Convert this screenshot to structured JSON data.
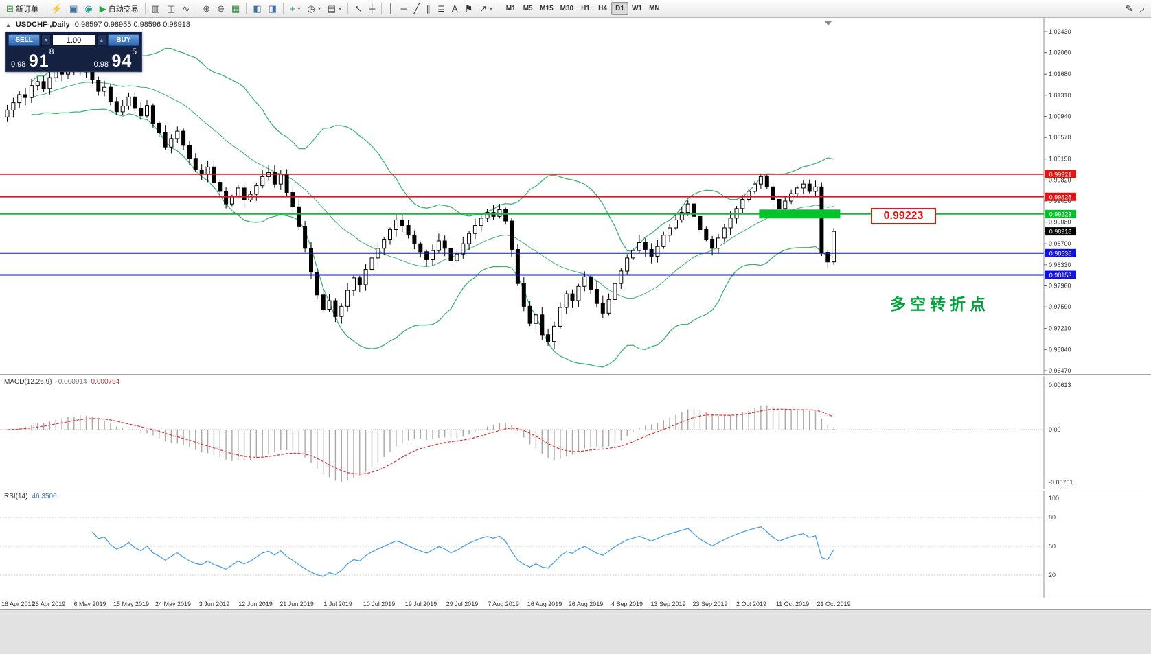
{
  "toolbar": {
    "dropdown_icon": "▾",
    "groups": [
      [
        {
          "name": "new-order",
          "icon": "⊞",
          "color": "#2e8b3a",
          "label": "新订单"
        }
      ],
      [
        {
          "name": "lightning",
          "icon": "⚡",
          "color": "#e59400"
        },
        {
          "name": "chart-profile",
          "icon": "▣",
          "color": "#3a6ea5"
        },
        {
          "name": "market-watch",
          "icon": "◉",
          "color": "#2a9d8f"
        },
        {
          "name": "auto-trading",
          "icon": "▶",
          "color": "#1faa3c",
          "label": "自动交易"
        }
      ],
      [
        {
          "name": "bar-chart-mode",
          "icon": "▥",
          "color": "#555555"
        },
        {
          "name": "candlestick-mode",
          "icon": "◫",
          "color": "#555555"
        },
        {
          "name": "line-chart-mode",
          "icon": "∿",
          "color": "#555555"
        }
      ],
      [
        {
          "name": "zoom-in",
          "icon": "⊕",
          "color": "#555555"
        },
        {
          "name": "zoom-out",
          "icon": "⊖",
          "color": "#555555"
        },
        {
          "name": "grid",
          "icon": "▦",
          "color": "#2e8b3a"
        }
      ],
      [
        {
          "name": "tile-windows",
          "icon": "◧",
          "color": "#3a6ea5"
        },
        {
          "name": "cascade-windows",
          "icon": "◨",
          "color": "#3a6ea5"
        }
      ],
      [
        {
          "name": "indicators",
          "icon": "+",
          "color": "#1faa3c",
          "dropdown": true
        },
        {
          "name": "periods",
          "icon": "◷",
          "color": "#555555",
          "dropdown": true
        },
        {
          "name": "templates",
          "icon": "▤",
          "color": "#555555",
          "dropdown": true
        }
      ],
      [
        {
          "name": "cursor",
          "icon": "↖",
          "color": "#333333"
        },
        {
          "name": "crosshair",
          "icon": "┼",
          "color": "#333333"
        }
      ],
      [
        {
          "name": "vertical-line",
          "icon": "│",
          "color": "#333333"
        },
        {
          "name": "horizontal-line",
          "icon": "─",
          "color": "#333333"
        },
        {
          "name": "trendline",
          "icon": "╱",
          "color": "#333333"
        },
        {
          "name": "equidistant-channel",
          "icon": "∥",
          "color": "#333333"
        },
        {
          "name": "fibonacci",
          "icon": "≣",
          "color": "#333333"
        },
        {
          "name": "text",
          "icon": "A",
          "color": "#333333"
        },
        {
          "name": "text-label",
          "icon": "⚑",
          "color": "#333333"
        },
        {
          "name": "arrows",
          "icon": "↗",
          "color": "#333333",
          "dropdown": true
        }
      ]
    ],
    "timeframes": [
      "M1",
      "M5",
      "M15",
      "M30",
      "H1",
      "H4",
      "D1",
      "W1",
      "MN"
    ],
    "active_timeframe": "D1",
    "right_icons": [
      {
        "name": "edit",
        "icon": "✎"
      },
      {
        "name": "search",
        "icon": "⌕"
      }
    ]
  },
  "chart": {
    "title": "USDCHF-,Daily",
    "ohlc": "0.98597 0.98955 0.98596 0.98918",
    "collapse_icon": "▲",
    "trade_panel": {
      "sell_label": "SELL",
      "buy_label": "BUY",
      "volume": "1.00",
      "spin_down_icon": "▾",
      "spin_up_icon": "▴",
      "sell_price_base": "0.98",
      "sell_price_big": "91",
      "sell_price_sup": "8",
      "buy_price_base": "0.98",
      "buy_price_big": "94",
      "buy_price_sup": "5"
    },
    "price_label_box": "0.99223",
    "annotation": "多空转折点"
  },
  "macd": {
    "name": "MACD(12,26,9)",
    "value1": "-0.000914",
    "value2": "0.000794",
    "axis": [
      "0.00613",
      "0.00",
      "-0.00761"
    ]
  },
  "rsi": {
    "name": "RSI(14)",
    "value": "46.3506",
    "axis": [
      100,
      80,
      50,
      20
    ],
    "levels": [
      80,
      50,
      20
    ]
  },
  "chart_data": {
    "type": "candlestick",
    "symbol": "USDCHF",
    "timeframe": "Daily",
    "ohlc_display": {
      "open": "0.98597",
      "high": "0.98955",
      "low": "0.98596",
      "close": "0.98918"
    },
    "price_axis_ticks": [
      1.0243,
      1.0206,
      1.0168,
      1.0131,
      1.0094,
      1.0057,
      1.0019,
      0.9982,
      0.9945,
      0.9908,
      0.987,
      0.9833,
      0.9796,
      0.9759,
      0.9721,
      0.9684,
      0.9647
    ],
    "date_ticks": [
      "16 Apr 2019",
      "26 Apr 2019",
      "6 May 2019",
      "15 May 2019",
      "24 May 2019",
      "3 Jun 2019",
      "12 Jun 2019",
      "21 Jun 2019",
      "1 Jul 2019",
      "10 Jul 2019",
      "19 Jul 2019",
      "29 Jul 2019",
      "7 Aug 2019",
      "16 Aug 2019",
      "26 Aug 2019",
      "4 Sep 2019",
      "13 Sep 2019",
      "23 Sep 2019",
      "2 Oct 2019",
      "11 Oct 2019",
      "21 Oct 2019"
    ],
    "closes": [
      1.0105,
      1.0118,
      1.0132,
      1.0127,
      1.0148,
      1.0155,
      1.0143,
      1.0162,
      1.0175,
      1.0168,
      1.0182,
      1.0176,
      1.019,
      1.0172,
      1.0158,
      1.0138,
      1.0145,
      1.012,
      1.0102,
      1.0112,
      1.0128,
      1.0108,
      1.0095,
      1.0113,
      1.0082,
      1.0065,
      1.004,
      1.0055,
      1.0068,
      1.0043,
      1.002,
      1.0,
      0.9992,
      1.0005,
      0.9978,
      0.9962,
      0.994,
      0.9953,
      0.9968,
      0.9947,
      0.9957,
      0.9972,
      0.9988,
      0.9995,
      0.9975,
      0.9992,
      0.996,
      0.9935,
      0.99,
      0.9862,
      0.982,
      0.978,
      0.9755,
      0.977,
      0.9742,
      0.976,
      0.9788,
      0.981,
      0.9798,
      0.9825,
      0.9845,
      0.9862,
      0.9878,
      0.9895,
      0.9912,
      0.9902,
      0.9885,
      0.987,
      0.9856,
      0.9842,
      0.9858,
      0.9875,
      0.9862,
      0.984,
      0.9852,
      0.987,
      0.9888,
      0.9902,
      0.9915,
      0.9925,
      0.9918,
      0.993,
      0.991,
      0.986,
      0.98,
      0.976,
      0.973,
      0.9745,
      0.971,
      0.9698,
      0.9725,
      0.9758,
      0.9782,
      0.977,
      0.9795,
      0.9812,
      0.979,
      0.9765,
      0.9748,
      0.9772,
      0.98,
      0.9822,
      0.9845,
      0.9858,
      0.9872,
      0.986,
      0.9848,
      0.9865,
      0.9885,
      0.9898,
      0.9912,
      0.9925,
      0.994,
      0.9918,
      0.9895,
      0.9878,
      0.9862,
      0.988,
      0.9898,
      0.9915,
      0.9932,
      0.9948,
      0.9962,
      0.9975,
      0.9988,
      0.997,
      0.9948,
      0.9932,
      0.9945,
      0.9958,
      0.9968,
      0.9975,
      0.9962,
      0.997,
      0.9855,
      0.9838,
      0.98918
    ],
    "levels": [
      {
        "price": 0.99921,
        "color": "#e01515",
        "width": 1.6,
        "badge": "0.99921"
      },
      {
        "price": 0.99525,
        "color": "#e01515",
        "width": 1.6,
        "badge": "0.99525"
      },
      {
        "price": 0.99223,
        "color": "#00c42a",
        "width": 2,
        "badge": "0.99223"
      },
      {
        "price": 0.98536,
        "color": "#1414d8",
        "width": 2,
        "badge": "0.98536"
      },
      {
        "price": 0.98153,
        "color": "#1414d8",
        "width": 2,
        "badge": "0.98153"
      }
    ],
    "current_price": {
      "value": 0.98918,
      "badge": "0.98918",
      "badge_bg": "#000000"
    },
    "highlight_zone": {
      "price": 0.99223,
      "x_start_index": 124,
      "x_end_index": 137,
      "thickness": 13,
      "color": "#00c42a"
    },
    "bollinger": {
      "period": 20,
      "deviation": 2,
      "color": "#3cb371"
    },
    "macd_colors": {
      "histogram": "#a8a8a8",
      "signal": "#e03030"
    },
    "rsi_color": "#4aa0e8"
  }
}
